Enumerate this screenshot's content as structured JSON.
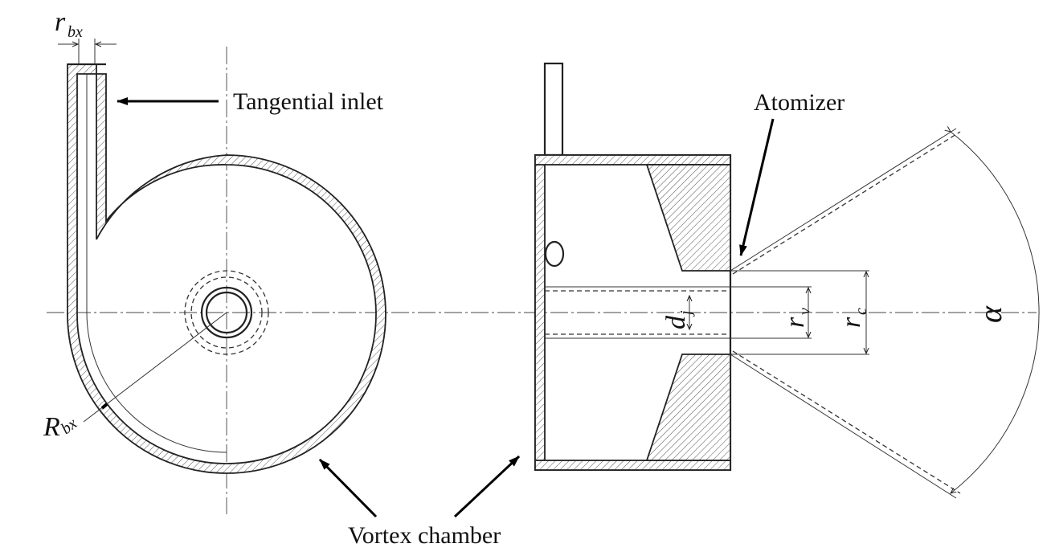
{
  "labels": {
    "tangential_inlet": "Tangential inlet",
    "atomizer": "Atomizer",
    "vortex_chamber": "Vortex chamber"
  },
  "symbols": {
    "r_bx_main": "r",
    "r_bx_sub": "bx",
    "R_bx_main": "R",
    "R_bx_sub": "bx",
    "d_j_main": "d",
    "d_j_sub": "j",
    "r_v_main": "r",
    "r_v_sub": "v",
    "r_c_main": "r",
    "r_c_sub": "c",
    "alpha": "α"
  },
  "colors": {
    "line": "#222222",
    "background": "#ffffff"
  }
}
